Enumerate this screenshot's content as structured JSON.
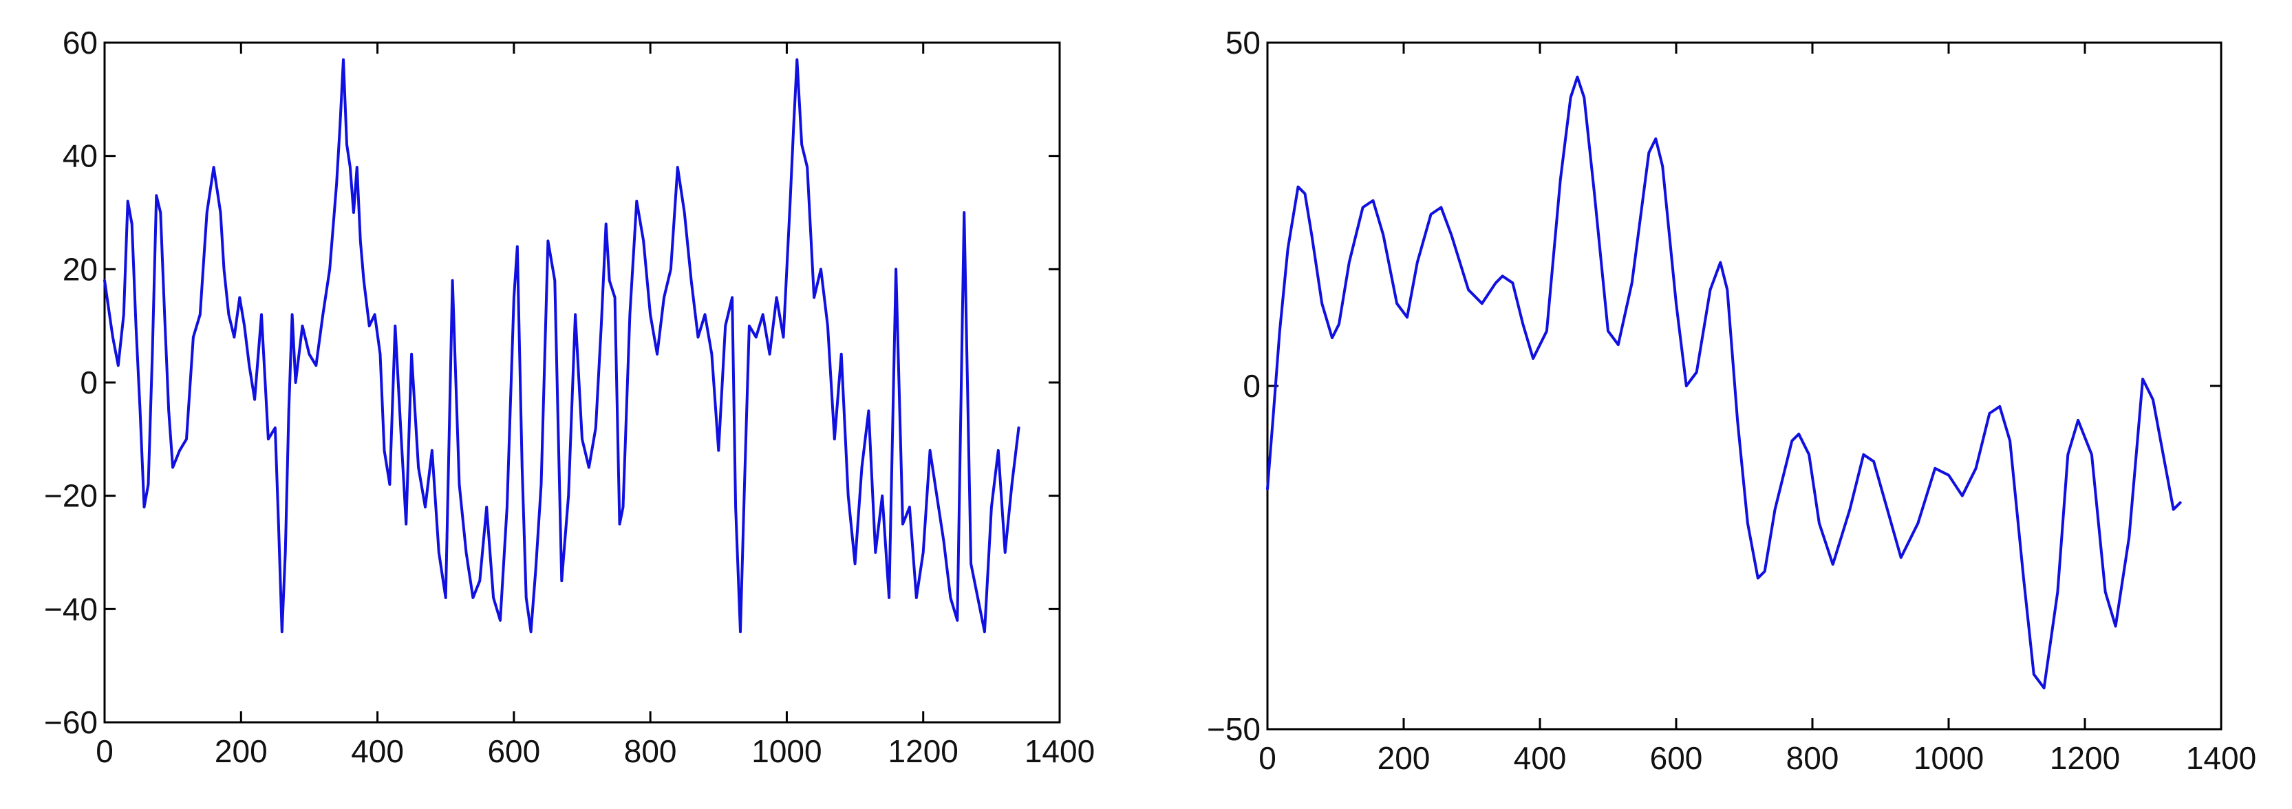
{
  "chart_data": [
    {
      "type": "line",
      "title": "",
      "xlabel": "",
      "ylabel": "",
      "xlim": [
        0,
        1400
      ],
      "ylim": [
        -60,
        60
      ],
      "xticks": [
        "0",
        "200",
        "400",
        "600",
        "800",
        "1000",
        "1200",
        "1400"
      ],
      "yticks": [
        "−60",
        "−40",
        "−20",
        "0",
        "20",
        "40",
        "60"
      ],
      "grid": false,
      "color": "#1010e0",
      "series": [
        {
          "x": [
            0,
            12,
            20,
            28,
            34,
            40,
            46,
            52,
            58,
            64,
            70,
            76,
            82,
            88,
            94,
            100,
            110,
            120,
            130,
            140,
            150,
            160,
            170,
            175,
            182,
            190,
            198,
            205,
            212,
            220,
            230,
            240,
            250,
            255,
            260,
            265,
            270,
            275,
            280,
            290,
            300,
            310,
            320,
            330,
            340,
            345,
            350,
            355,
            360,
            365,
            370,
            375,
            380,
            388,
            396,
            404,
            410,
            418,
            426,
            434,
            442,
            450,
            460,
            470,
            480,
            490,
            500,
            510,
            520,
            530,
            540,
            550,
            560,
            570,
            580,
            590,
            600,
            605,
            612,
            618,
            625,
            632,
            640,
            650,
            660,
            670,
            680,
            690,
            700,
            710,
            720,
            728,
            735,
            740,
            748,
            755,
            760,
            770,
            780,
            790,
            800,
            810,
            820,
            830,
            840,
            850,
            860,
            870,
            880,
            890,
            900,
            910,
            920,
            925,
            932,
            938,
            945,
            955,
            965,
            975,
            985,
            995,
            1005,
            1010,
            1015,
            1022,
            1030,
            1040,
            1050,
            1060,
            1070,
            1080,
            1090,
            1100,
            1110,
            1120,
            1130,
            1140,
            1150,
            1160,
            1170,
            1180,
            1190,
            1200,
            1210,
            1220,
            1230,
            1240,
            1250,
            1260,
            1270,
            1280,
            1290,
            1300,
            1310,
            1320,
            1330,
            1340
          ],
          "values": [
            18,
            8,
            3,
            12,
            32,
            28,
            10,
            -5,
            -22,
            -18,
            5,
            33,
            30,
            12,
            -5,
            -15,
            -12,
            -10,
            8,
            12,
            30,
            38,
            30,
            20,
            12,
            8,
            15,
            10,
            3,
            -3,
            12,
            -10,
            -8,
            -25,
            -44,
            -30,
            -5,
            12,
            0,
            10,
            5,
            3,
            12,
            20,
            35,
            45,
            57,
            42,
            38,
            30,
            38,
            25,
            18,
            10,
            12,
            5,
            -12,
            -18,
            10,
            -8,
            -25,
            5,
            -15,
            -22,
            -12,
            -30,
            -38,
            18,
            -18,
            -30,
            -38,
            -35,
            -22,
            -38,
            -42,
            -22,
            15,
            24,
            -15,
            -38,
            -44,
            -33,
            -18,
            25,
            18,
            -35,
            -20,
            12,
            -10,
            -15,
            -8,
            10,
            28,
            18,
            15,
            -25,
            -22,
            12,
            32,
            25,
            12,
            5,
            15,
            20,
            38,
            30,
            18,
            8,
            12,
            5,
            -12,
            10,
            15,
            -22,
            -44,
            -18,
            10,
            8,
            12,
            5,
            15,
            8,
            32,
            45,
            57,
            42,
            38,
            15,
            20,
            10,
            -10,
            5,
            -20,
            -32,
            -15,
            -5,
            -30,
            -20,
            -38,
            20,
            -25,
            -22,
            -38,
            -30,
            -12,
            -20,
            -28,
            -38,
            -42,
            30,
            -32,
            -38,
            -44,
            -22,
            -12,
            -30,
            -18,
            -8
          ]
        }
      ]
    },
    {
      "type": "line",
      "title": "",
      "xlabel": "",
      "ylabel": "",
      "xlim": [
        0,
        1400
      ],
      "ylim": [
        -50,
        50
      ],
      "xticks": [
        "0",
        "200",
        "400",
        "600",
        "800",
        "1000",
        "1200",
        "1400"
      ],
      "yticks": [
        "−50",
        "0",
        "50"
      ],
      "grid": false,
      "color": "#1010e0",
      "series": [
        {
          "x": [
            0,
            8,
            18,
            30,
            45,
            55,
            65,
            80,
            95,
            105,
            120,
            140,
            155,
            170,
            190,
            205,
            220,
            240,
            255,
            270,
            295,
            315,
            335,
            345,
            360,
            375,
            390,
            410,
            430,
            445,
            455,
            465,
            480,
            500,
            515,
            535,
            560,
            570,
            580,
            600,
            615,
            630,
            650,
            665,
            675,
            690,
            705,
            720,
            730,
            745,
            770,
            780,
            795,
            810,
            830,
            855,
            875,
            890,
            910,
            930,
            955,
            980,
            1000,
            1020,
            1040,
            1060,
            1075,
            1090,
            1110,
            1125,
            1140,
            1160,
            1175,
            1190,
            1210,
            1230,
            1245,
            1265,
            1285,
            1300,
            1315,
            1330,
            1340
          ],
          "values": [
            -15,
            -5,
            8,
            20,
            29,
            28,
            22,
            12,
            7,
            9,
            18,
            26,
            27,
            22,
            12,
            10,
            18,
            25,
            26,
            22,
            14,
            12,
            15,
            16,
            15,
            9,
            4,
            8,
            30,
            42,
            45,
            42,
            28,
            8,
            6,
            15,
            34,
            36,
            32,
            12,
            0,
            2,
            14,
            18,
            14,
            -5,
            -20,
            -28,
            -27,
            -18,
            -8,
            -7,
            -10,
            -20,
            -26,
            -18,
            -10,
            -11,
            -18,
            -25,
            -20,
            -12,
            -13,
            -16,
            -12,
            -4,
            -3,
            -8,
            -28,
            -42,
            -44,
            -30,
            -10,
            -5,
            -10,
            -30,
            -35,
            -22,
            1,
            -2,
            -10,
            -18,
            -17
          ]
        }
      ]
    }
  ]
}
